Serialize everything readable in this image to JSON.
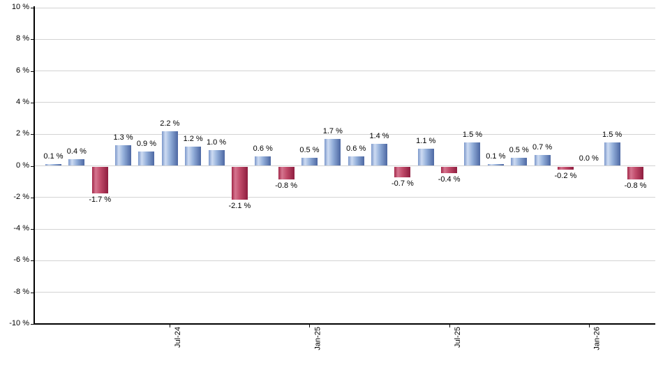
{
  "chart_data": {
    "type": "bar",
    "title": "",
    "xlabel": "",
    "ylabel": "",
    "ylim": [
      -10,
      10
    ],
    "ytick_step": 2,
    "grid": true,
    "legend": "none",
    "ytick_labels": [
      "10 %",
      "8 %",
      "6 %",
      "4 %",
      "2 %",
      "0 %",
      "-2 %",
      "-4 %",
      "-6 %",
      "-8 %",
      "-10 %"
    ],
    "values": [
      0.1,
      0.4,
      -1.7,
      1.3,
      0.9,
      2.2,
      1.2,
      1.0,
      -2.1,
      0.6,
      -0.8,
      0.5,
      1.7,
      0.6,
      1.4,
      -0.7,
      1.1,
      -0.4,
      1.5,
      0.1,
      0.5,
      0.7,
      -0.2,
      0.0,
      1.5,
      -0.8
    ],
    "value_labels": [
      "0.1 %",
      "0.4 %",
      "-1.7 %",
      "1.3 %",
      "0.9 %",
      "2.2 %",
      "1.2 %",
      "1.0 %",
      "-2.1 %",
      "0.6 %",
      "-0.8 %",
      "0.5 %",
      "1.7 %",
      "0.6 %",
      "1.4 %",
      "-0.7 %",
      "1.1 %",
      "-0.4 %",
      "1.5 %",
      "0.1 %",
      "0.5 %",
      "0.7 %",
      "-0.2 %",
      "0.0 %",
      "1.5 %",
      "-0.8 %"
    ],
    "xticks": [
      {
        "index": 5,
        "label": "Jul-24"
      },
      {
        "index": 11,
        "label": "Jan-25"
      },
      {
        "index": 17,
        "label": "Jul-25"
      },
      {
        "index": 23,
        "label": "Jan-26"
      }
    ],
    "colors": {
      "positive": "#6d89bf",
      "positive_gradient": [
        "#7b97cb",
        "#cedcf2",
        "#93afda",
        "#4c67a2"
      ],
      "negative": "#b23a5c",
      "negative_gradient": [
        "#a22648",
        "#d5758f",
        "#c04a69",
        "#8e1d3f"
      ],
      "gridline": "#d3d3d3",
      "axis": "#000000",
      "label_text": "#000000"
    }
  }
}
